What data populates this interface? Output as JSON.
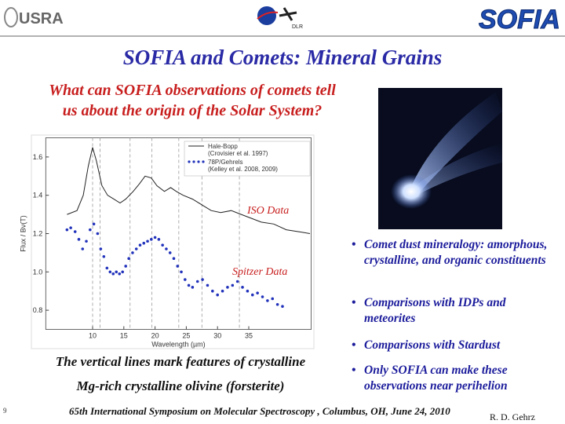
{
  "header": {
    "logo_left": "USRA",
    "logo_center": "DLR",
    "logo_right": "SOFIA"
  },
  "title": "SOFIA and Comets: Mineral Grains",
  "question": [
    "What can SOFIA observations of comets tell",
    "us about the origin of the Solar System?"
  ],
  "chart_data": {
    "type": "line",
    "y_label": "Flux / Bν(T)",
    "x_label": "Wavelength (µm)",
    "xlim": [
      2.5,
      45
    ],
    "ylim": [
      0.7,
      1.7
    ],
    "xticks": [
      10,
      15,
      20,
      25,
      30,
      35
    ],
    "yticks": [
      0.8,
      {
        "value": 1,
        "label": "1.0"
      },
      1.2,
      1.4,
      1.6
    ],
    "vlines": [
      10.0,
      11.2,
      16.0,
      19.5,
      23.8,
      27.5,
      33.5
    ],
    "annotations": [
      "ISO Data",
      "Spitzer Data"
    ],
    "series": [
      {
        "name": "Hale-Bopp",
        "reference": "(Crovisier et al. 1997)",
        "color": "#222222",
        "x": [
          5.9,
          7.5,
          8.5,
          9.3,
          10.0,
          10.6,
          11.5,
          12.4,
          13.4,
          14.4,
          15.3,
          16.5,
          17.5,
          18.4,
          19.4,
          20.3,
          21.5,
          22.5,
          23.4,
          24.5,
          26.0,
          27.5,
          29.0,
          30.5,
          32.2,
          33.8,
          35.4,
          37.0,
          39.0,
          41.0,
          43.0,
          44.8
        ],
        "values": [
          1.3,
          1.32,
          1.4,
          1.55,
          1.65,
          1.58,
          1.45,
          1.4,
          1.38,
          1.36,
          1.38,
          1.42,
          1.46,
          1.5,
          1.49,
          1.45,
          1.42,
          1.44,
          1.42,
          1.4,
          1.38,
          1.35,
          1.32,
          1.31,
          1.32,
          1.3,
          1.28,
          1.26,
          1.25,
          1.22,
          1.21,
          1.2
        ]
      },
      {
        "name": "78P/Gehrels",
        "reference": "(Kelley et al. 2008, 2009)",
        "color": "#2233bb",
        "x": [
          5.9,
          6.5,
          7.2,
          7.8,
          8.4,
          9.0,
          9.6,
          10.2,
          10.8,
          11.3,
          11.8,
          12.3,
          12.8,
          13.3,
          13.8,
          14.3,
          14.8,
          15.3,
          15.8,
          16.4,
          17.0,
          17.6,
          18.2,
          18.8,
          19.4,
          20.0,
          20.6,
          21.2,
          21.8,
          22.4,
          23.0,
          23.6,
          24.2,
          24.8,
          25.4,
          26.0,
          26.8,
          27.6,
          28.4,
          29.2,
          30.0,
          30.8,
          31.6,
          32.4,
          33.2,
          34.0,
          34.8,
          35.6,
          36.4,
          37.2,
          38.0,
          38.8,
          39.6,
          40.4
        ],
        "values": [
          1.22,
          1.23,
          1.21,
          1.17,
          1.12,
          1.16,
          1.22,
          1.25,
          1.2,
          1.12,
          1.08,
          1.02,
          1.0,
          0.99,
          1.0,
          0.99,
          1.0,
          1.03,
          1.07,
          1.1,
          1.12,
          1.14,
          1.15,
          1.16,
          1.17,
          1.18,
          1.17,
          1.14,
          1.12,
          1.1,
          1.07,
          1.03,
          1.0,
          0.96,
          0.93,
          0.92,
          0.95,
          0.96,
          0.93,
          0.9,
          0.88,
          0.9,
          0.92,
          0.93,
          0.95,
          0.92,
          0.9,
          0.88,
          0.89,
          0.87,
          0.85,
          0.86,
          0.83,
          0.82
        ]
      }
    ]
  },
  "caption": [
    "The vertical lines mark features of crystalline",
    "Mg-rich crystalline olivine (forsterite)"
  ],
  "bullets": [
    "Comet dust mineralogy: amorphous, crystalline, and organic constituents",
    "Comparisons with IDPs and meteorites",
    "Comparisons with Stardust",
    "Only SOFIA can make these observations near perihelion"
  ],
  "footer": {
    "page": "9",
    "event": "65th International Symposium on Molecular Spectroscopy , Columbus, OH, June 24, 2010",
    "author": "R. D. Gehrz"
  }
}
